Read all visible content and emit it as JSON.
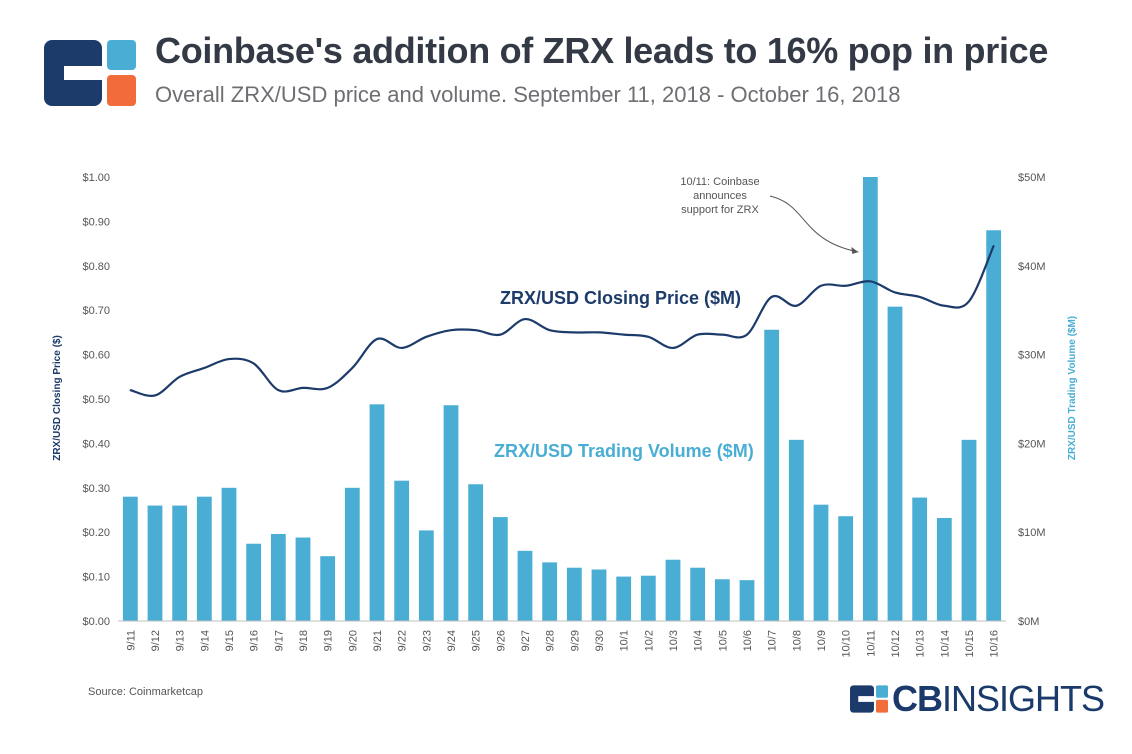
{
  "header": {
    "title": "Coinbase's addition of ZRX leads to 16% pop in price",
    "subtitle": "Overall ZRX/USD price and volume. September 11, 2018 - October 16, 2018"
  },
  "footer": {
    "source": "Source: Coinmarketcap",
    "brand_bold": "CB",
    "brand_light": "INSIGHTS"
  },
  "colors": {
    "bar": "#4aaed4",
    "line": "#1d3b6a",
    "logo_navy": "#1d3b6a",
    "logo_blue": "#4aaed4",
    "logo_orange": "#f26b3a"
  },
  "chart_data": {
    "type": "bar",
    "title": "Coinbase's addition of ZRX leads to 16% pop in price",
    "categories": [
      "9/11",
      "9/12",
      "9/13",
      "9/14",
      "9/15",
      "9/16",
      "9/17",
      "9/18",
      "9/19",
      "9/20",
      "9/21",
      "9/22",
      "9/23",
      "9/24",
      "9/25",
      "9/26",
      "9/27",
      "9/28",
      "9/29",
      "9/30",
      "10/1",
      "10/2",
      "10/3",
      "10/4",
      "10/5",
      "10/6",
      "10/7",
      "10/8",
      "10/9",
      "10/10",
      "10/11",
      "10/12",
      "10/13",
      "10/14",
      "10/15",
      "10/16"
    ],
    "series": [
      {
        "name": "ZRX/USD Trading Volume ($M)",
        "type": "bar",
        "axis": "right",
        "values": [
          14.0,
          13.0,
          13.0,
          14.0,
          15.0,
          8.7,
          9.8,
          9.4,
          7.3,
          15.0,
          24.4,
          15.8,
          10.2,
          24.3,
          15.4,
          11.7,
          7.9,
          6.6,
          6.0,
          5.8,
          5.0,
          5.1,
          6.9,
          6.0,
          4.7,
          4.6,
          32.8,
          20.4,
          13.1,
          11.8,
          50.0,
          35.4,
          13.9,
          11.6,
          20.4,
          44.0
        ]
      },
      {
        "name": "ZRX/USD Closing Price ($M)",
        "type": "line",
        "axis": "left",
        "values": [
          0.52,
          0.508,
          0.55,
          0.57,
          0.59,
          0.58,
          0.52,
          0.525,
          0.525,
          0.57,
          0.635,
          0.615,
          0.64,
          0.655,
          0.655,
          0.645,
          0.68,
          0.655,
          0.65,
          0.65,
          0.645,
          0.64,
          0.615,
          0.645,
          0.645,
          0.645,
          0.73,
          0.71,
          0.755,
          0.755,
          0.765,
          0.74,
          0.73,
          0.71,
          0.72,
          0.845
        ]
      }
    ],
    "y_left": {
      "label": "ZRX/USD Closing Price ($)",
      "ylim": [
        0,
        1.0
      ],
      "ticks": [
        "$0.00",
        "$0.10",
        "$0.20",
        "$0.30",
        "$0.40",
        "$0.50",
        "$0.60",
        "$0.70",
        "$0.80",
        "$0.90",
        "$1.00"
      ]
    },
    "y_right": {
      "label": "ZRX/USD Trading Volume ($M)",
      "ylim": [
        0,
        50
      ],
      "ticks": [
        "$0M",
        "$10M",
        "$20M",
        "$30M",
        "$40M",
        "$50M"
      ]
    },
    "series_labels": {
      "price": "ZRX/USD Closing Price ($M)",
      "volume": "ZRX/USD Trading Volume ($M)"
    },
    "annotation": {
      "lines": [
        "10/11: Coinbase",
        "announces",
        "support for ZRX"
      ],
      "target_category": "10/11"
    },
    "grid": false,
    "legend": "inline"
  }
}
